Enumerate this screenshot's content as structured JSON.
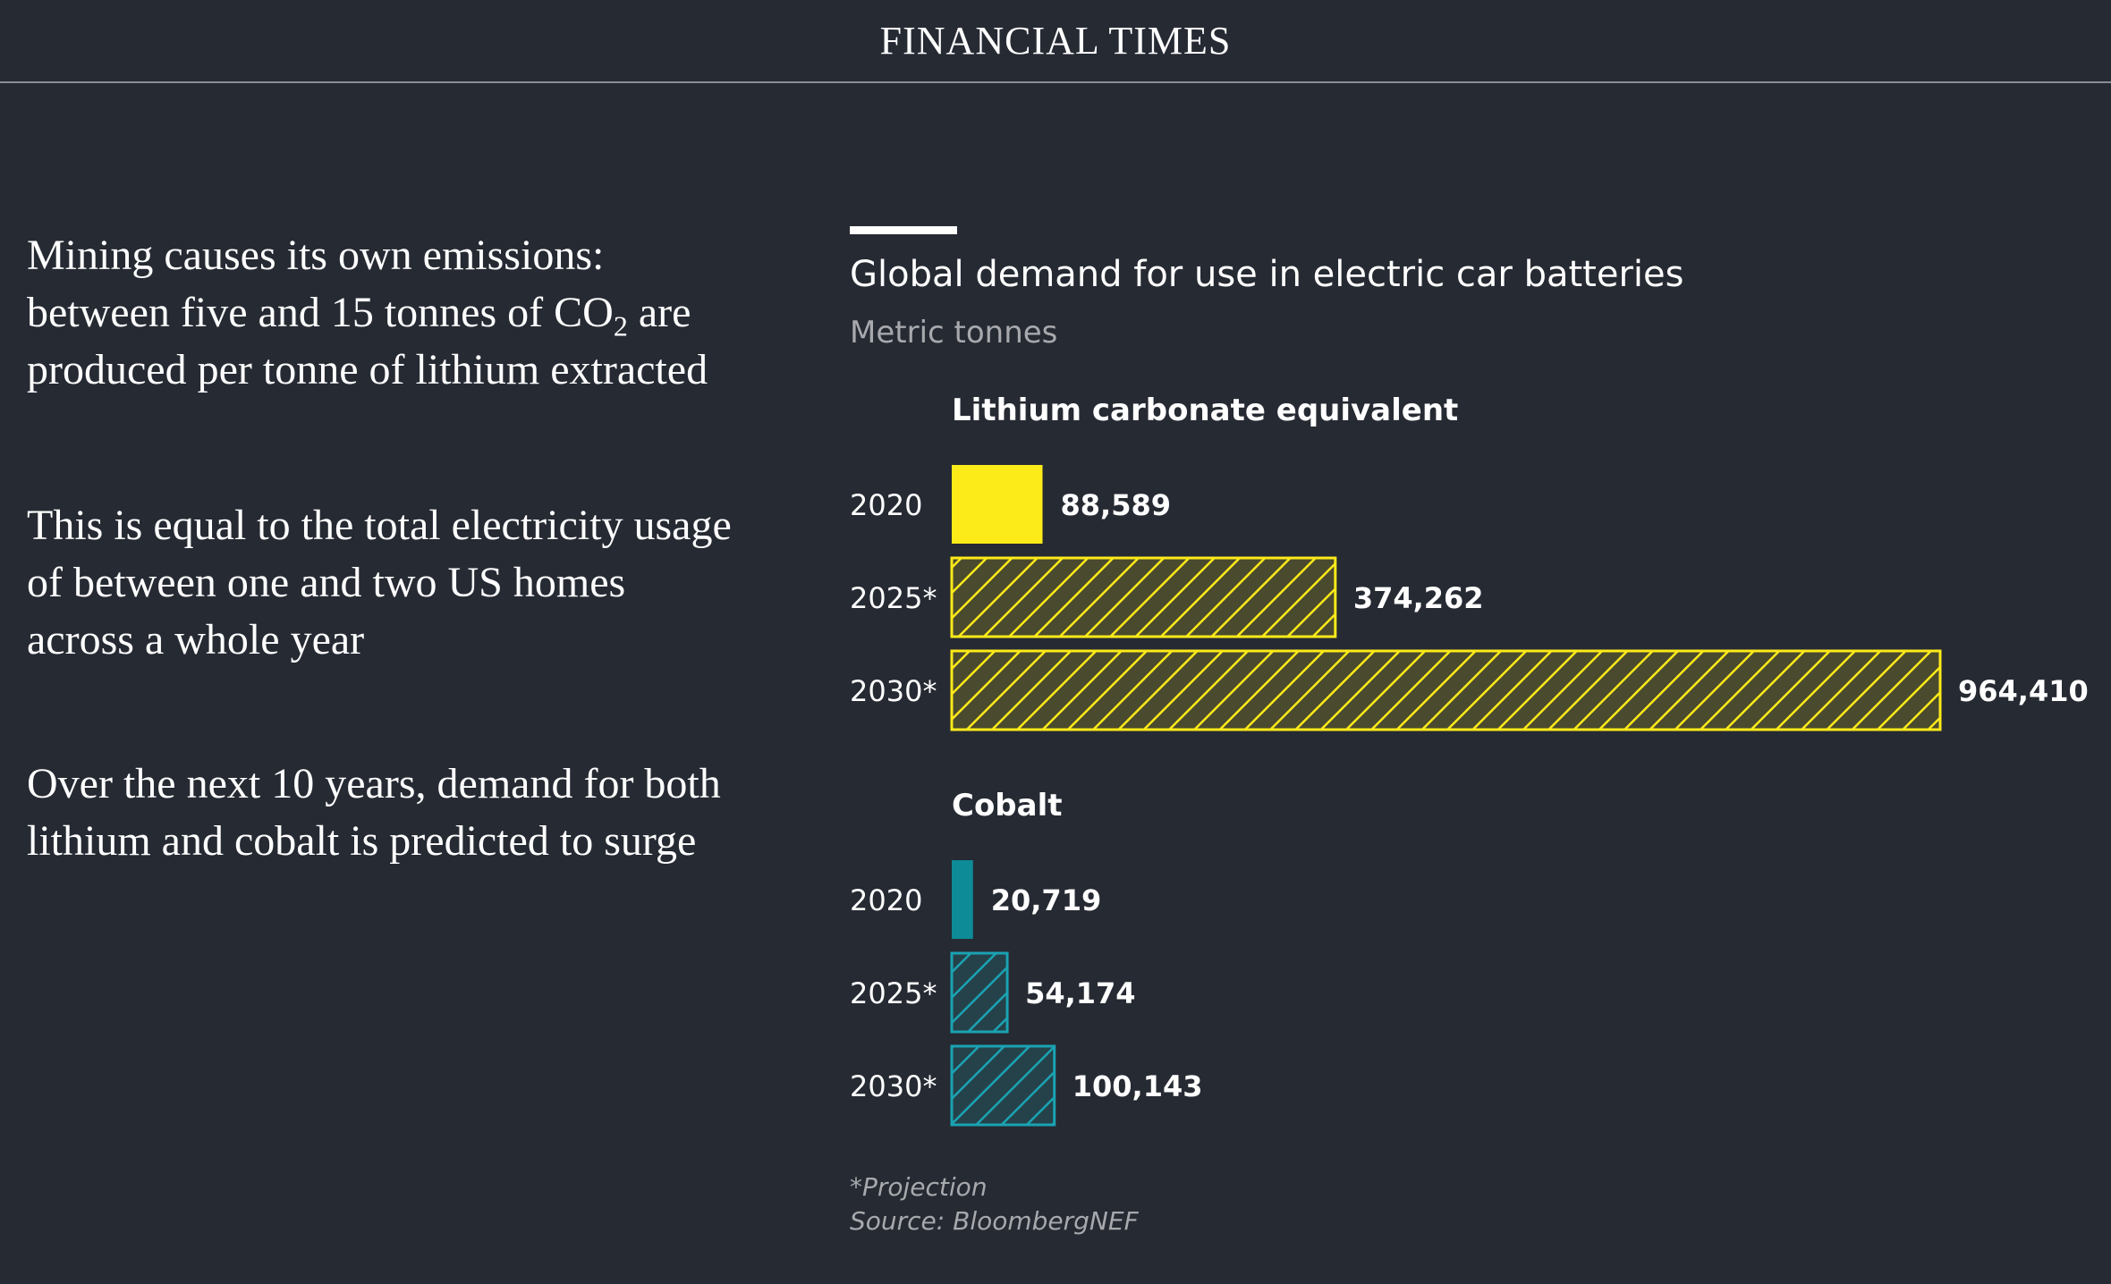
{
  "masthead": {
    "title": "FINANCIAL TIMES"
  },
  "narrative": {
    "paragraph_1_before": "Mining causes its own emissions: between five and 15 tonnes of CO",
    "paragraph_1_sub": "2",
    "paragraph_1_after": " are produced per tonne of lithium extracted",
    "paragraph_2": "This is equal to the total electricity usage of between one and two US homes across a whole year",
    "paragraph_3": "Over the next 10 years, demand for both lithium and cobalt is predicted to surge"
  },
  "chart_data": {
    "type": "bar",
    "orientation": "horizontal",
    "title": "Global demand for use in electric car batteries",
    "subtitle": "Metric tonnes",
    "footnote": "*Projection",
    "source": "Source: BloombergNEF",
    "shared_scale": true,
    "panels": [
      {
        "name": "Lithium carbonate equivalent",
        "color": "#fdea19",
        "categories": [
          "2020",
          "2025*",
          "2030*"
        ],
        "values": [
          88589,
          374262,
          964410
        ],
        "value_labels": [
          "88,589",
          "374,262",
          "964,410"
        ],
        "projected": [
          false,
          true,
          true
        ]
      },
      {
        "name": "Cobalt",
        "color": "#0d8b97",
        "hatch_color": "#1aa3b3",
        "categories": [
          "2020",
          "2025*",
          "2030*"
        ],
        "values": [
          20719,
          54174,
          100143
        ],
        "value_labels": [
          "20,719",
          "54,174",
          "100,143"
        ],
        "projected": [
          false,
          true,
          true
        ]
      }
    ],
    "legend": "none",
    "grid": false
  }
}
